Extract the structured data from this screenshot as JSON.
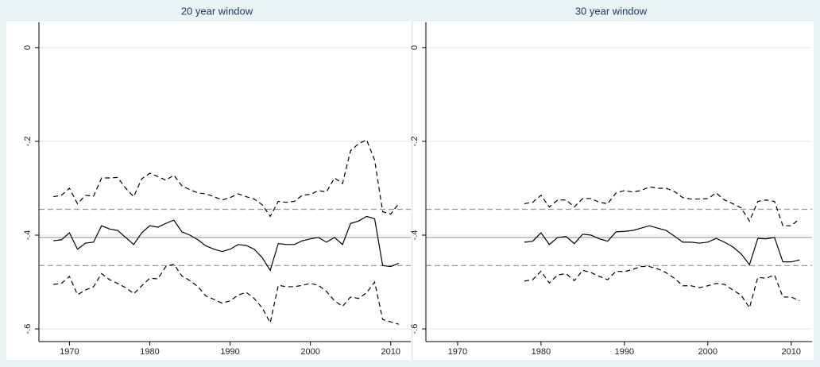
{
  "chart_data": [
    {
      "type": "line",
      "title": "20 year window",
      "x": [
        1968,
        1969,
        1970,
        1971,
        1972,
        1973,
        1974,
        1975,
        1976,
        1977,
        1978,
        1979,
        1980,
        1981,
        1982,
        1983,
        1984,
        1985,
        1986,
        1987,
        1988,
        1989,
        1990,
        1991,
        1992,
        1993,
        1994,
        1995,
        1996,
        1997,
        1998,
        1999,
        2000,
        2001,
        2002,
        2003,
        2004,
        2005,
        2006,
        2007,
        2008,
        2009,
        2010,
        2011
      ],
      "series": [
        {
          "color": "#000000",
          "dash": "solid",
          "values": [
            -0.412,
            -0.41,
            -0.395,
            -0.43,
            -0.417,
            -0.415,
            -0.38,
            -0.387,
            -0.39,
            -0.405,
            -0.42,
            -0.395,
            -0.38,
            -0.383,
            -0.375,
            -0.368,
            -0.393,
            -0.4,
            -0.41,
            -0.423,
            -0.43,
            -0.435,
            -0.43,
            -0.42,
            -0.422,
            -0.43,
            -0.448,
            -0.475,
            -0.418,
            -0.42,
            -0.42,
            -0.412,
            -0.408,
            -0.405,
            -0.415,
            -0.405,
            -0.42,
            -0.375,
            -0.37,
            -0.36,
            -0.365,
            -0.465,
            -0.467,
            -0.46
          ]
        },
        {
          "color": "#000000",
          "dash": "dashed",
          "values": [
            -0.318,
            -0.315,
            -0.3,
            -0.333,
            -0.315,
            -0.317,
            -0.278,
            -0.278,
            -0.277,
            -0.3,
            -0.318,
            -0.28,
            -0.268,
            -0.275,
            -0.283,
            -0.272,
            -0.295,
            -0.303,
            -0.31,
            -0.312,
            -0.318,
            -0.325,
            -0.32,
            -0.312,
            -0.318,
            -0.323,
            -0.335,
            -0.36,
            -0.328,
            -0.33,
            -0.328,
            -0.315,
            -0.313,
            -0.305,
            -0.308,
            -0.278,
            -0.29,
            -0.22,
            -0.205,
            -0.197,
            -0.24,
            -0.35,
            -0.355,
            -0.333
          ]
        },
        {
          "color": "#000000",
          "dash": "dashed",
          "values": [
            -0.505,
            -0.503,
            -0.488,
            -0.527,
            -0.517,
            -0.51,
            -0.482,
            -0.495,
            -0.503,
            -0.512,
            -0.525,
            -0.508,
            -0.492,
            -0.493,
            -0.467,
            -0.462,
            -0.487,
            -0.497,
            -0.51,
            -0.53,
            -0.537,
            -0.545,
            -0.54,
            -0.528,
            -0.522,
            -0.535,
            -0.555,
            -0.587,
            -0.507,
            -0.51,
            -0.51,
            -0.507,
            -0.503,
            -0.507,
            -0.52,
            -0.54,
            -0.552,
            -0.532,
            -0.535,
            -0.523,
            -0.5,
            -0.58,
            -0.585,
            -0.59
          ]
        }
      ],
      "hlines": [
        {
          "value": -0.405,
          "color": "#9a9a9a",
          "dash": "solid"
        },
        {
          "value": -0.345,
          "color": "#9a9a9a",
          "dash": "dashed"
        },
        {
          "value": -0.465,
          "color": "#9a9a9a",
          "dash": "dashed"
        }
      ],
      "xlim": [
        1966.2,
        2012.5
      ],
      "xticks": [
        1970,
        1980,
        1990,
        2000,
        2010
      ],
      "ylim": [
        -0.627,
        0.054
      ],
      "yticks": [
        0,
        {
          "value": -0.2,
          "label": "-.2"
        },
        {
          "value": -0.4,
          "label": "-.4"
        },
        {
          "value": -0.6,
          "label": "-.6"
        }
      ],
      "grid": true
    },
    {
      "type": "line",
      "title": "30 year window",
      "x": [
        1978,
        1979,
        1980,
        1981,
        1982,
        1983,
        1984,
        1985,
        1986,
        1987,
        1988,
        1989,
        1990,
        1991,
        1992,
        1993,
        1994,
        1995,
        1996,
        1997,
        1998,
        1999,
        2000,
        2001,
        2002,
        2003,
        2004,
        2005,
        2006,
        2007,
        2008,
        2009,
        2010,
        2011
      ],
      "series": [
        {
          "color": "#000000",
          "dash": "solid",
          "values": [
            -0.415,
            -0.413,
            -0.395,
            -0.42,
            -0.405,
            -0.403,
            -0.418,
            -0.398,
            -0.4,
            -0.408,
            -0.413,
            -0.393,
            -0.392,
            -0.39,
            -0.385,
            -0.38,
            -0.385,
            -0.39,
            -0.402,
            -0.415,
            -0.415,
            -0.417,
            -0.415,
            -0.407,
            -0.415,
            -0.425,
            -0.44,
            -0.463,
            -0.407,
            -0.408,
            -0.405,
            -0.457,
            -0.457,
            -0.453
          ]
        },
        {
          "color": "#000000",
          "dash": "dashed",
          "values": [
            -0.333,
            -0.33,
            -0.315,
            -0.34,
            -0.325,
            -0.325,
            -0.34,
            -0.322,
            -0.322,
            -0.33,
            -0.333,
            -0.31,
            -0.305,
            -0.308,
            -0.305,
            -0.297,
            -0.3,
            -0.3,
            -0.307,
            -0.32,
            -0.323,
            -0.323,
            -0.322,
            -0.31,
            -0.325,
            -0.333,
            -0.342,
            -0.37,
            -0.328,
            -0.325,
            -0.328,
            -0.38,
            -0.38,
            -0.365
          ]
        },
        {
          "color": "#000000",
          "dash": "dashed",
          "values": [
            -0.498,
            -0.495,
            -0.477,
            -0.502,
            -0.485,
            -0.482,
            -0.497,
            -0.475,
            -0.48,
            -0.488,
            -0.495,
            -0.477,
            -0.478,
            -0.473,
            -0.467,
            -0.467,
            -0.472,
            -0.48,
            -0.492,
            -0.508,
            -0.508,
            -0.512,
            -0.508,
            -0.503,
            -0.505,
            -0.517,
            -0.528,
            -0.555,
            -0.49,
            -0.492,
            -0.485,
            -0.532,
            -0.532,
            -0.54
          ]
        }
      ],
      "hlines": [
        {
          "value": -0.405,
          "color": "#9a9a9a",
          "dash": "solid"
        },
        {
          "value": -0.345,
          "color": "#9a9a9a",
          "dash": "dashed"
        },
        {
          "value": -0.465,
          "color": "#9a9a9a",
          "dash": "dashed"
        }
      ],
      "xlim": [
        1966.2,
        2012.5
      ],
      "xticks": [
        1970,
        1980,
        1990,
        2000,
        2010
      ],
      "ylim": [
        -0.627,
        0.054
      ],
      "yticks": [
        0,
        {
          "value": -0.2,
          "label": "-.2"
        },
        {
          "value": -0.4,
          "label": "-.4"
        },
        {
          "value": -0.6,
          "label": "-.6"
        }
      ],
      "grid": true
    }
  ]
}
